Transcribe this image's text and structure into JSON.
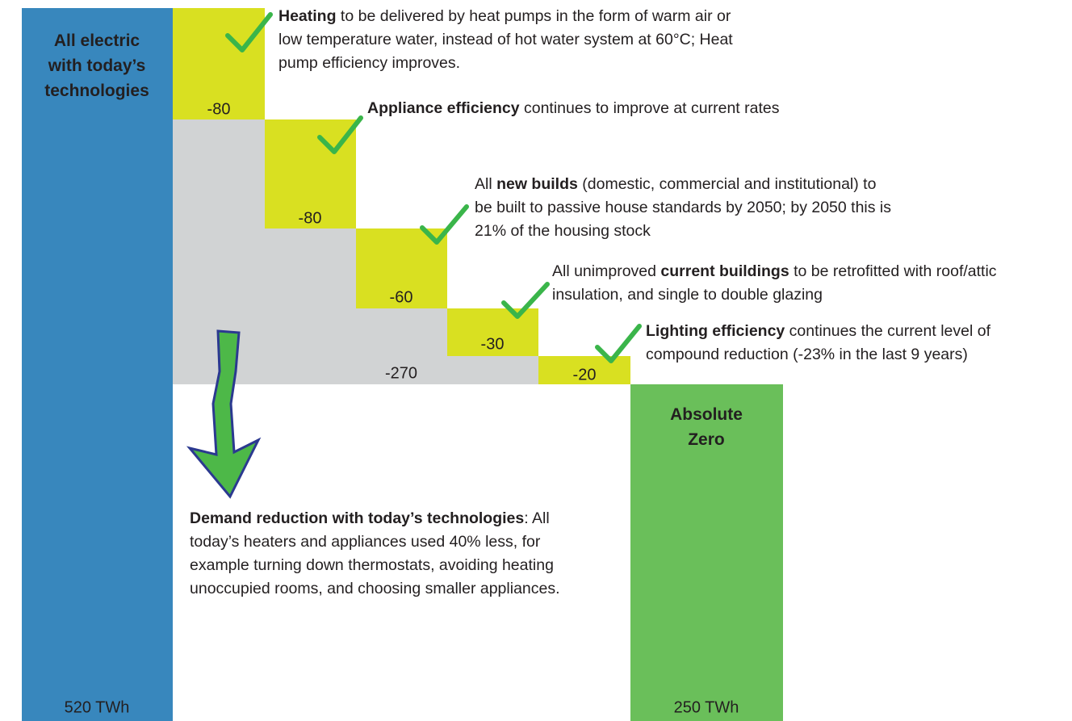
{
  "start": {
    "title": "All electric with today’s technologies",
    "value": "520 TWh"
  },
  "steps": [
    {
      "label": "-80",
      "note": [
        {
          "text": "Heating",
          "bold": true
        },
        {
          "text": " to be delivered by heat pumps in the form of warm air or low temperature water, instead of hot water system at 60°C; Heat pump efficiency improves."
        }
      ]
    },
    {
      "label": "-80",
      "note": [
        {
          "text": "Appliance efficiency",
          "bold": true
        },
        {
          "text": " continues to improve at current rates"
        }
      ]
    },
    {
      "label": "-60",
      "note": [
        {
          "text": "All "
        },
        {
          "text": "new builds",
          "bold": true
        },
        {
          "text": " (domestic, commercial and institutional) to be built to passive house standards by 2050; by 2050 this is 21% of the housing stock"
        }
      ]
    },
    {
      "label": "-30",
      "note": [
        {
          "text": "All unimproved "
        },
        {
          "text": "current buildings",
          "bold": true
        },
        {
          "text": " to be retrofitted with roof/attic insulation, and single to double glazing"
        }
      ]
    },
    {
      "label": "-20",
      "note": [
        {
          "text": "Lighting efficiency",
          "bold": true
        },
        {
          "text": " continues the current level of compound reduction (-23% in the last 9 years)"
        }
      ]
    }
  ],
  "remainder": {
    "label": "-270",
    "note": [
      {
        "text": "Demand reduction with today’s technologies",
        "bold": true
      },
      {
        "text": ": All today’s heaters and appliances used 40% less, for example turning down thermostats, avoiding heating unoccupied rooms, and choosing smaller appliances."
      }
    ]
  },
  "end": {
    "title": "Absolute Zero",
    "value": "250 TWh"
  }
}
